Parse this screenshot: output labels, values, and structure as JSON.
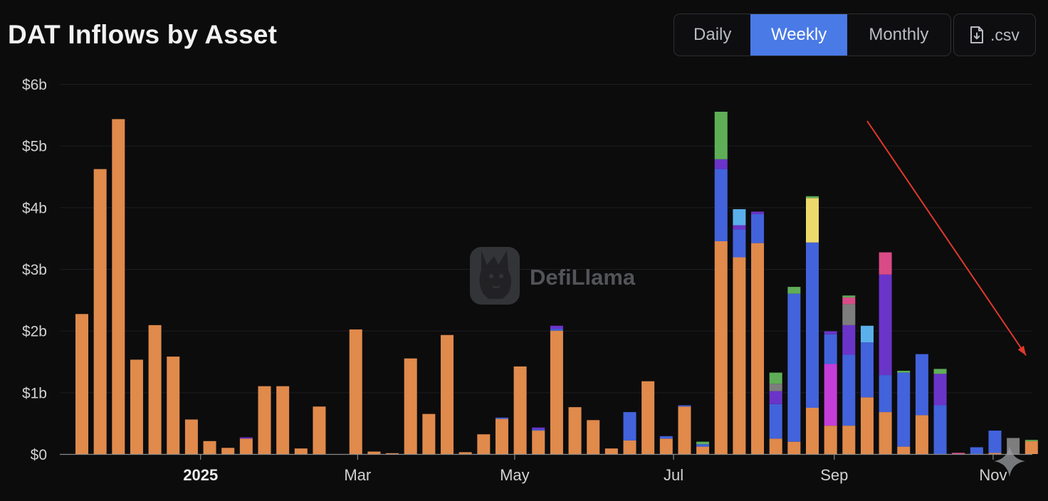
{
  "title": "DAT Inflows by Asset",
  "period_toggle": {
    "options": [
      "Daily",
      "Weekly",
      "Monthly"
    ],
    "selected": "Weekly"
  },
  "export": {
    "label": ".csv",
    "icon": "file-csv-icon"
  },
  "watermark": {
    "text": "DefiLlama",
    "icon": "llama-logo-icon"
  },
  "colors": {
    "orange": "#e08a4c",
    "blue": "#4263db",
    "purple": "#6b34c9",
    "green": "#5fae57",
    "light_blue": "#5ab0ea",
    "yellow": "#ecd96c",
    "magenta": "#c43dd8",
    "pink": "#d94b86",
    "gray": "#7d7d7d",
    "annotation": "#e0392b",
    "accent": "#4a7ae6"
  },
  "chart_data": {
    "type": "bar",
    "stacked": true,
    "title": "DAT Inflows by Asset",
    "ylim": [
      0,
      6
    ],
    "yunit": "billion USD",
    "yticks": [
      "$0",
      "$1b",
      "$2b",
      "$3b",
      "$4b",
      "$5b",
      "$6b"
    ],
    "xticks": [
      {
        "label": "2025",
        "bold": true,
        "at_bar": 6.5
      },
      {
        "label": "Mar",
        "bold": false,
        "at_bar": 15.1
      },
      {
        "label": "May",
        "bold": false,
        "at_bar": 23.7
      },
      {
        "label": "Jul",
        "bold": false,
        "at_bar": 32.4
      },
      {
        "label": "Sep",
        "bold": false,
        "at_bar": 41.2
      },
      {
        "label": "Nov",
        "bold": false,
        "at_bar": 49.9
      }
    ],
    "grid": true,
    "legend": "none",
    "annotation": {
      "type": "arrow",
      "from": [
        43.0,
        5.4
      ],
      "to": [
        51.7,
        1.6
      ]
    },
    "series_colors": {
      "orange": "#e08a4c",
      "blue": "#4263db",
      "purple": "#6b34c9",
      "green": "#5fae57",
      "light_blue": "#5ab0ea",
      "yellow": "#ecd96c",
      "magenta": "#c43dd8",
      "pink": "#d94b86",
      "gray": "#7d7d7d"
    },
    "weeks": [
      {
        "segments": [
          [
            "orange",
            2.27
          ]
        ]
      },
      {
        "segments": [
          [
            "orange",
            4.62
          ]
        ]
      },
      {
        "segments": [
          [
            "orange",
            5.43
          ]
        ]
      },
      {
        "segments": [
          [
            "orange",
            1.53
          ]
        ]
      },
      {
        "segments": [
          [
            "orange",
            2.09
          ]
        ]
      },
      {
        "segments": [
          [
            "orange",
            1.58
          ]
        ]
      },
      {
        "segments": [
          [
            "orange",
            0.56
          ]
        ]
      },
      {
        "segments": [
          [
            "orange",
            0.21
          ]
        ]
      },
      {
        "segments": [
          [
            "orange",
            0.1
          ]
        ]
      },
      {
        "segments": [
          [
            "orange",
            0.25
          ],
          [
            "purple",
            0.02
          ]
        ]
      },
      {
        "segments": [
          [
            "orange",
            1.1
          ]
        ]
      },
      {
        "segments": [
          [
            "orange",
            1.1
          ]
        ]
      },
      {
        "segments": [
          [
            "orange",
            0.09
          ]
        ]
      },
      {
        "segments": [
          [
            "orange",
            0.77
          ]
        ]
      },
      {
        "segments": []
      },
      {
        "segments": [
          [
            "orange",
            2.02
          ]
        ]
      },
      {
        "segments": [
          [
            "orange",
            0.04
          ]
        ]
      },
      {
        "segments": [
          [
            "orange",
            0.01
          ]
        ]
      },
      {
        "segments": [
          [
            "orange",
            1.55
          ]
        ]
      },
      {
        "segments": [
          [
            "orange",
            0.65
          ]
        ]
      },
      {
        "segments": [
          [
            "orange",
            1.93
          ]
        ]
      },
      {
        "segments": [
          [
            "orange",
            0.03
          ]
        ]
      },
      {
        "segments": [
          [
            "orange",
            0.32
          ]
        ]
      },
      {
        "segments": [
          [
            "orange",
            0.57
          ],
          [
            "blue",
            0.02
          ]
        ]
      },
      {
        "segments": [
          [
            "orange",
            1.42
          ]
        ]
      },
      {
        "segments": [
          [
            "orange",
            0.38
          ],
          [
            "blue",
            0.02
          ],
          [
            "purple",
            0.03
          ]
        ]
      },
      {
        "segments": [
          [
            "orange",
            2.0
          ],
          [
            "blue",
            0.03
          ],
          [
            "purple",
            0.05
          ]
        ]
      },
      {
        "segments": [
          [
            "orange",
            0.76
          ]
        ]
      },
      {
        "segments": [
          [
            "orange",
            0.55
          ]
        ]
      },
      {
        "segments": [
          [
            "orange",
            0.09
          ]
        ]
      },
      {
        "segments": [
          [
            "orange",
            0.22
          ],
          [
            "blue",
            0.46
          ]
        ]
      },
      {
        "segments": [
          [
            "orange",
            1.18
          ]
        ]
      },
      {
        "segments": [
          [
            "orange",
            0.25
          ],
          [
            "blue",
            0.04
          ]
        ]
      },
      {
        "segments": [
          [
            "orange",
            0.77
          ],
          [
            "blue",
            0.02
          ]
        ]
      },
      {
        "segments": [
          [
            "orange",
            0.12
          ],
          [
            "blue",
            0.04
          ],
          [
            "green",
            0.04
          ]
        ]
      },
      {
        "segments": [
          [
            "orange",
            3.45
          ],
          [
            "blue",
            1.17
          ],
          [
            "purple",
            0.16
          ],
          [
            "green",
            0.77
          ]
        ]
      },
      {
        "segments": [
          [
            "orange",
            3.19
          ],
          [
            "blue",
            0.45
          ],
          [
            "purple",
            0.07
          ],
          [
            "light_blue",
            0.26
          ]
        ]
      },
      {
        "segments": [
          [
            "orange",
            3.42
          ],
          [
            "blue",
            0.47
          ],
          [
            "purple",
            0.04
          ]
        ]
      },
      {
        "segments": [
          [
            "orange",
            0.25
          ],
          [
            "blue",
            0.56
          ],
          [
            "purple",
            0.21
          ],
          [
            "gray",
            0.12
          ],
          [
            "green",
            0.18
          ]
        ]
      },
      {
        "segments": [
          [
            "orange",
            0.2
          ],
          [
            "blue",
            2.4
          ],
          [
            "green",
            0.11
          ]
        ]
      },
      {
        "segments": [
          [
            "orange",
            0.75
          ],
          [
            "blue",
            2.68
          ],
          [
            "yellow",
            0.72
          ],
          [
            "green",
            0.03
          ]
        ]
      },
      {
        "segments": [
          [
            "orange",
            0.46
          ],
          [
            "magenta",
            1.0
          ],
          [
            "blue",
            0.48
          ],
          [
            "purple",
            0.05
          ]
        ]
      },
      {
        "segments": [
          [
            "orange",
            0.46
          ],
          [
            "blue",
            1.15
          ],
          [
            "purple",
            0.48
          ],
          [
            "gray",
            0.34
          ],
          [
            "pink",
            0.11
          ],
          [
            "green",
            0.03
          ]
        ]
      },
      {
        "segments": [
          [
            "orange",
            0.92
          ],
          [
            "blue",
            0.89
          ],
          [
            "light_blue",
            0.27
          ]
        ]
      },
      {
        "segments": [
          [
            "orange",
            0.68
          ],
          [
            "blue",
            0.6
          ],
          [
            "purple",
            1.63
          ],
          [
            "pink",
            0.36
          ]
        ]
      },
      {
        "segments": [
          [
            "orange",
            0.12
          ],
          [
            "blue",
            1.2
          ],
          [
            "green",
            0.03
          ]
        ]
      },
      {
        "segments": [
          [
            "orange",
            0.63
          ],
          [
            "blue",
            0.99
          ]
        ]
      },
      {
        "segments": [
          [
            "blue",
            0.79
          ],
          [
            "purple",
            0.51
          ],
          [
            "green",
            0.08
          ]
        ]
      },
      {
        "segments": [
          [
            "pink",
            0.02
          ]
        ]
      },
      {
        "segments": [
          [
            "blue",
            0.11
          ]
        ]
      },
      {
        "segments": [
          [
            "orange",
            0.02
          ],
          [
            "blue",
            0.36
          ]
        ]
      },
      {
        "segments": [
          [
            "gray",
            0.26
          ]
        ]
      },
      {
        "segments": [
          [
            "orange",
            0.21
          ],
          [
            "green",
            0.02
          ]
        ]
      }
    ]
  }
}
